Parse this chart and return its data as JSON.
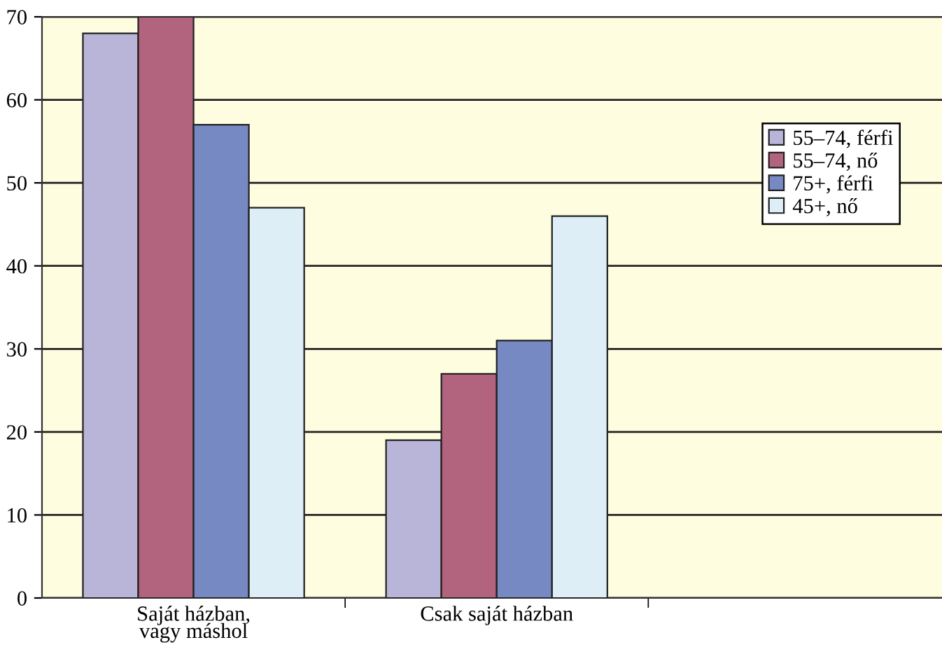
{
  "chart_data": {
    "type": "bar",
    "categories": [
      "Saját házban,\nvagy máshol",
      "Csak saját házban",
      null
    ],
    "series": [
      {
        "name": "55–74, férfi",
        "color": "#b9b5d8",
        "values": [
          68,
          19,
          null
        ]
      },
      {
        "name": "55–74, nő",
        "color": "#b2637d",
        "values": [
          70,
          27,
          null
        ]
      },
      {
        "name": "75+, férfi",
        "color": "#7689c2",
        "values": [
          57,
          31,
          null
        ]
      },
      {
        "name": "45+, nő",
        "color": "#ddeef6",
        "values": [
          47,
          46,
          null
        ]
      }
    ],
    "ylim": [
      0,
      70
    ],
    "yticks": [
      0,
      10,
      20,
      30,
      40,
      50,
      60,
      70
    ],
    "grid": "y",
    "legend": "right"
  }
}
